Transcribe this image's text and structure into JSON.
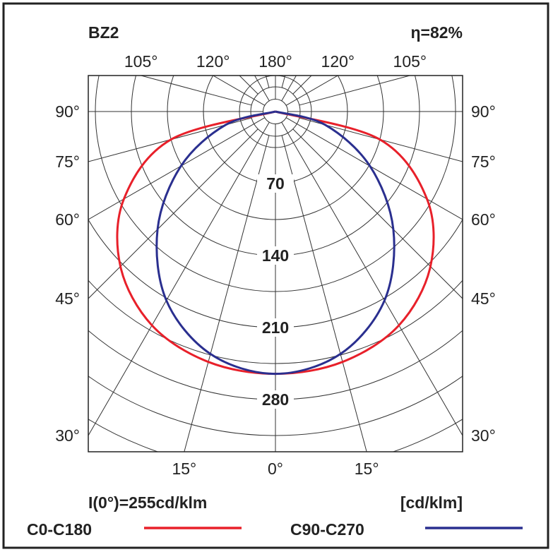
{
  "chart_data": {
    "type": "polar-line",
    "title": "BZ2",
    "efficiency": "η=82%",
    "intensity_note": "I(0°)=255cd/klm",
    "unit": "[cd/klm]",
    "radial_ticks": [
      70,
      140,
      210,
      280
    ],
    "radial_tick_labels": [
      "70",
      "140",
      "210",
      "280"
    ],
    "radial_max": 420,
    "angle_labels": {
      "top": [
        {
          "angle": -105,
          "label": "105°"
        },
        {
          "angle": -120,
          "label": "120°"
        },
        {
          "angle": 180,
          "label": "180°"
        },
        {
          "angle": 120,
          "label": "120°"
        },
        {
          "angle": 105,
          "label": "105°"
        }
      ],
      "left": [
        {
          "angle": -90,
          "label": "90°"
        },
        {
          "angle": -75,
          "label": "75°"
        },
        {
          "angle": -60,
          "label": "60°"
        },
        {
          "angle": -45,
          "label": "45°"
        },
        {
          "angle": -30,
          "label": "30°"
        }
      ],
      "right": [
        {
          "angle": 90,
          "label": "90°"
        },
        {
          "angle": 75,
          "label": "75°"
        },
        {
          "angle": 60,
          "label": "60°"
        },
        {
          "angle": 45,
          "label": "45°"
        },
        {
          "angle": 30,
          "label": "30°"
        }
      ],
      "bottom": [
        {
          "angle": -15,
          "label": "15°"
        },
        {
          "angle": 0,
          "label": "0°"
        },
        {
          "angle": 15,
          "label": "15°"
        }
      ]
    },
    "angles": [
      0,
      15,
      30,
      45,
      60,
      75,
      90
    ],
    "series": [
      {
        "name": "C0-C180",
        "color": "#e8202a",
        "values": [
          255,
          252,
          240,
          213,
          170,
          105,
          0
        ]
      },
      {
        "name": "C90-C270",
        "color": "#2a2f8f",
        "values": [
          255,
          244,
          212,
          162,
          106,
          50,
          0
        ]
      }
    ]
  }
}
